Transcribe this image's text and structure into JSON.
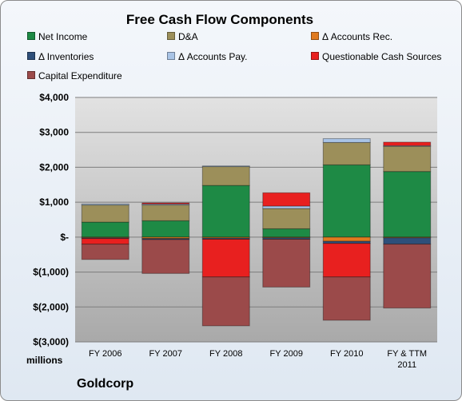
{
  "chart_data": {
    "type": "bar",
    "stacked": true,
    "title": "Free Cash Flow Components",
    "units_label": "millions",
    "company": "Goldcorp",
    "categories": [
      "FY 2006",
      "FY 2007",
      "FY 2008",
      "FY 2009",
      "FY 2010",
      "FY & TTM 2011"
    ],
    "ylim": [
      -3000,
      4000
    ],
    "yticks": [
      4000,
      3000,
      2000,
      1000,
      0,
      -1000,
      -2000,
      -3000
    ],
    "ytick_labels": [
      "$4,000",
      "$3,000",
      "$2,000",
      "$1,000",
      "$-",
      "$(1,000)",
      "$(2,000)",
      "$(3,000)"
    ],
    "grid": true,
    "legend_position": "top",
    "series": [
      {
        "name": "Net Income",
        "color": "#1e8a45",
        "values": [
          430,
          470,
          1480,
          240,
          2070,
          1880
        ]
      },
      {
        "name": "D&A",
        "color": "#9c8f5a",
        "values": [
          490,
          450,
          540,
          580,
          640,
          720
        ]
      },
      {
        "name": "Δ Accounts Rec.",
        "color": "#e07a1f",
        "values": [
          -20,
          -40,
          -30,
          -20,
          -120,
          -20
        ]
      },
      {
        "name": "Δ Inventories",
        "color": "#2e4f7a",
        "values": [
          -20,
          -30,
          -30,
          -40,
          -60,
          -180
        ]
      },
      {
        "name": "Δ Accounts Pay.",
        "color": "#a9c4e6",
        "values": [
          30,
          30,
          20,
          70,
          110,
          20
        ]
      },
      {
        "name": "Questionable Cash Sources",
        "color": "#e8201f",
        "values": [
          -160,
          30,
          -1080,
          380,
          -960,
          100
        ]
      },
      {
        "name": "Capital Expenditure",
        "color": "#9b4a4a",
        "values": [
          -440,
          -970,
          -1400,
          -1370,
          -1240,
          -1830
        ]
      }
    ]
  }
}
